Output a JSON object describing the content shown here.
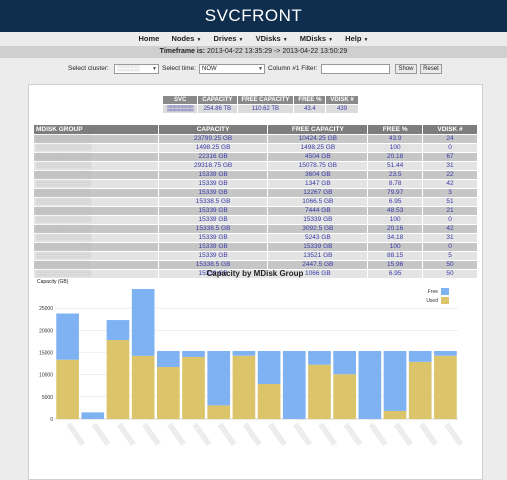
{
  "header": {
    "title": "SVCFRONT"
  },
  "nav": {
    "items": [
      "Home",
      "Nodes",
      "Drives",
      "VDisks",
      "MDisks",
      "Help"
    ]
  },
  "timeframe": {
    "label": "Timeframe is:",
    "value": "2013-04-22 13:35:29 -> 2013-04-22 13:50:29"
  },
  "filters": {
    "cluster_label": "Select cluster:",
    "cluster_value": "▒▒▒▒▒▒",
    "time_label": "Select time:",
    "time_value": "NOW",
    "filter_label": "Column #1 Filter:",
    "filter_value": "",
    "show_label": "Show",
    "reset_label": "Reset"
  },
  "svc_table": {
    "headers": [
      "SVC",
      "CAPACITY",
      "FREE CAPACITY",
      "FREE %",
      "VDISK #"
    ],
    "row": [
      "▒▒▒▒▒▒▒",
      "254.86 TB",
      "110.62 TB",
      "43.4",
      "439"
    ]
  },
  "mdisk_table": {
    "headers": [
      "MDISK GROUP",
      "CAPACITY",
      "FREE CAPACITY",
      "FREE %",
      "VDISK #"
    ],
    "rows": [
      [
        "▒▒▒▒▒▒▒▒▒▒▒▒",
        "23799.25 GB",
        "10424.25 GB",
        "43.9",
        "24"
      ],
      [
        "▒▒▒▒▒▒▒▒▒▒▒▒",
        "1498.25 GB",
        "1498.25 GB",
        "100",
        "0"
      ],
      [
        "▒▒▒▒▒▒▒▒▒▒▒▒",
        "22316 GB",
        "4504 GB",
        "20.18",
        "67"
      ],
      [
        "▒▒▒▒▒▒▒▒▒▒▒▒",
        "29318.75 GB",
        "15078.75 GB",
        "51.44",
        "31"
      ],
      [
        "▒▒▒▒▒▒▒▒▒▒▒▒",
        "15339 GB",
        "3604 GB",
        "23.5",
        "22"
      ],
      [
        "▒▒▒▒▒▒▒▒▒▒▒▒",
        "15339 GB",
        "1347 GB",
        "8.78",
        "42"
      ],
      [
        "▒▒▒▒▒▒▒▒▒▒▒▒",
        "15339 GB",
        "12267 GB",
        "79.97",
        "3"
      ],
      [
        "▒▒▒▒▒▒▒▒▒▒▒▒",
        "15338.5 GB",
        "1066.5 GB",
        "6.95",
        "51"
      ],
      [
        "▒▒▒▒▒▒▒▒▒▒▒▒",
        "15339 GB",
        "7444 GB",
        "48.53",
        "21"
      ],
      [
        "▒▒▒▒▒▒▒▒▒▒▒▒",
        "15339 GB",
        "15339 GB",
        "100",
        "0"
      ],
      [
        "▒▒▒▒▒▒▒▒▒▒▒▒",
        "15338.5 GB",
        "3092.5 GB",
        "20.16",
        "42"
      ],
      [
        "▒▒▒▒▒▒▒▒▒▒▒▒",
        "15339 GB",
        "5243 GB",
        "34.18",
        "31"
      ],
      [
        "▒▒▒▒▒▒▒▒▒▒▒▒",
        "15339 GB",
        "15339 GB",
        "100",
        "0"
      ],
      [
        "▒▒▒▒▒▒▒▒▒▒▒▒",
        "15339 GB",
        "13521 GB",
        "88.15",
        "5"
      ],
      [
        "▒▒▒▒▒▒▒▒▒▒▒▒",
        "15338.5 GB",
        "2447.5 GB",
        "15.96",
        "50"
      ],
      [
        "▒▒▒▒▒▒▒▒▒▒▒▒",
        "15339 GB",
        "1066 GB",
        "6.95",
        "50"
      ]
    ]
  },
  "chart_data": {
    "type": "bar",
    "title": "Capacity by MDisk Group",
    "ylabel": "Capacity (GB)",
    "ylim": [
      0,
      30000
    ],
    "yticks": [
      0,
      5000,
      10000,
      15000,
      20000,
      25000
    ],
    "legend_position": "top-right",
    "stacked": true,
    "categories": [
      "▒▒▒▒▒▒▒",
      "▒▒▒▒▒▒▒",
      "▒▒▒▒▒▒▒",
      "▒▒▒▒▒▒▒",
      "▒▒▒▒▒▒▒",
      "▒▒▒▒▒▒▒",
      "▒▒▒▒▒▒▒",
      "▒▒▒▒▒▒▒",
      "▒▒▒▒▒▒▒",
      "▒▒▒▒▒▒▒",
      "▒▒▒▒▒▒▒",
      "▒▒▒▒▒▒▒",
      "▒▒▒▒▒▒▒",
      "▒▒▒▒▒▒▒",
      "▒▒▒▒▒▒▒",
      "▒▒▒▒▒▒▒"
    ],
    "series": [
      {
        "name": "Used",
        "color": "#dcc46a",
        "values": [
          13375,
          0,
          17812,
          14240,
          11735,
          13992,
          3072,
          14272,
          7895,
          0,
          12246,
          10096,
          0,
          1818,
          12891,
          14273
        ]
      },
      {
        "name": "Free",
        "color": "#7fb2f2",
        "values": [
          10424.25,
          1498.25,
          4504,
          15078.75,
          3604,
          1347,
          12267,
          1066.5,
          7444,
          15339,
          3092.5,
          5243,
          15339,
          13521,
          2447.5,
          1066
        ]
      }
    ]
  }
}
